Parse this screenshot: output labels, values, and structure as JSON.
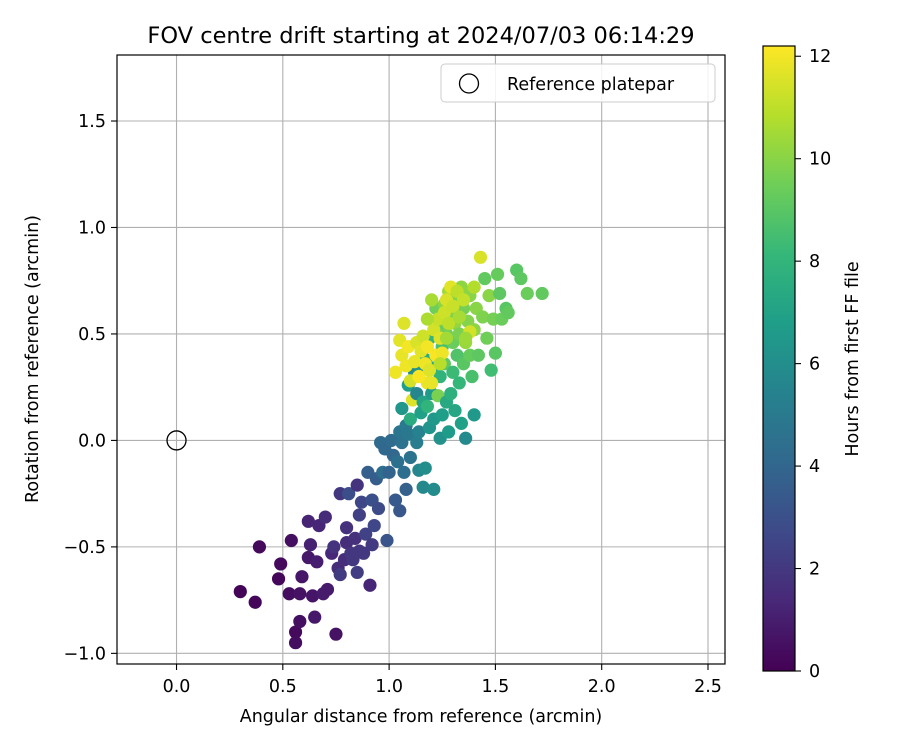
{
  "chart_data": {
    "type": "scatter",
    "title": "FOV centre drift starting at 2024/07/03 06:14:29",
    "xlabel": "Angular distance from reference (arcmin)",
    "ylabel": "Rotation from reference (arcmin)",
    "xlim": [
      -0.28,
      2.58
    ],
    "ylim": [
      -1.05,
      1.81
    ],
    "xticks": [
      0.0,
      0.5,
      1.0,
      1.5,
      2.0,
      2.5
    ],
    "xtick_labels": [
      "0.0",
      "0.5",
      "1.0",
      "1.5",
      "2.0",
      "2.5"
    ],
    "yticks": [
      -1.0,
      -0.5,
      0.0,
      0.5,
      1.0,
      1.5
    ],
    "ytick_labels": [
      "−1.0",
      "−0.5",
      "0.0",
      "0.5",
      "1.0",
      "1.5"
    ],
    "grid": true,
    "legend": {
      "placement": "top-right",
      "entries": [
        "Reference platepar"
      ]
    },
    "reference_point": {
      "x": 0.0,
      "y": 0.0
    },
    "colorbar": {
      "label": "Hours from first FF file",
      "colormap": "viridis",
      "range": [
        0,
        12.2
      ],
      "ticks": [
        0,
        2,
        4,
        6,
        8,
        10,
        12
      ],
      "tick_labels": [
        "0",
        "2",
        "4",
        "6",
        "8",
        "10",
        "12"
      ],
      "colors": [
        "#440154",
        "#482878",
        "#3e4a89",
        "#31688e",
        "#26828e",
        "#1f9e89",
        "#35b779",
        "#6ece58",
        "#b5de2b",
        "#fde725"
      ]
    },
    "points": [
      {
        "x": 0.3,
        "y": -0.71,
        "hours": 0.1
      },
      {
        "x": 0.37,
        "y": -0.76,
        "hours": 0.2
      },
      {
        "x": 0.39,
        "y": -0.5,
        "hours": 0.3
      },
      {
        "x": 0.48,
        "y": -0.65,
        "hours": 0.2
      },
      {
        "x": 0.49,
        "y": -0.58,
        "hours": 0.3
      },
      {
        "x": 0.53,
        "y": -0.72,
        "hours": 0.4
      },
      {
        "x": 0.54,
        "y": -0.47,
        "hours": 0.5
      },
      {
        "x": 0.56,
        "y": -0.9,
        "hours": 0.3
      },
      {
        "x": 0.56,
        "y": -0.95,
        "hours": 0.4
      },
      {
        "x": 0.58,
        "y": -0.85,
        "hours": 0.5
      },
      {
        "x": 0.58,
        "y": -0.72,
        "hours": 0.6
      },
      {
        "x": 0.59,
        "y": -0.64,
        "hours": 0.7
      },
      {
        "x": 0.62,
        "y": -0.55,
        "hours": 0.8
      },
      {
        "x": 0.62,
        "y": -0.38,
        "hours": 1.2
      },
      {
        "x": 0.63,
        "y": -0.49,
        "hours": 1.1
      },
      {
        "x": 0.64,
        "y": -0.73,
        "hours": 0.7
      },
      {
        "x": 0.65,
        "y": -0.83,
        "hours": 0.8
      },
      {
        "x": 0.66,
        "y": -0.57,
        "hours": 1.0
      },
      {
        "x": 0.67,
        "y": -0.4,
        "hours": 1.3
      },
      {
        "x": 0.69,
        "y": -0.72,
        "hours": 0.9
      },
      {
        "x": 0.7,
        "y": -0.36,
        "hours": 1.5
      },
      {
        "x": 0.71,
        "y": -0.7,
        "hours": 0.9
      },
      {
        "x": 0.73,
        "y": -0.53,
        "hours": 1.4
      },
      {
        "x": 0.74,
        "y": -0.5,
        "hours": 1.8
      },
      {
        "x": 0.75,
        "y": -0.91,
        "hours": 0.6
      },
      {
        "x": 0.76,
        "y": -0.6,
        "hours": 1.5
      },
      {
        "x": 0.77,
        "y": -0.25,
        "hours": 2.0
      },
      {
        "x": 0.77,
        "y": -0.63,
        "hours": 2.1
      },
      {
        "x": 0.79,
        "y": -0.56,
        "hours": 1.6
      },
      {
        "x": 0.8,
        "y": -0.48,
        "hours": 1.6
      },
      {
        "x": 0.8,
        "y": -0.41,
        "hours": 1.7
      },
      {
        "x": 0.81,
        "y": -0.25,
        "hours": 2.9
      },
      {
        "x": 0.82,
        "y": -0.53,
        "hours": 1.9
      },
      {
        "x": 0.83,
        "y": -0.56,
        "hours": 2.0
      },
      {
        "x": 0.84,
        "y": -0.46,
        "hours": 1.7
      },
      {
        "x": 0.85,
        "y": -0.21,
        "hours": 1.8
      },
      {
        "x": 0.85,
        "y": -0.62,
        "hours": 2.2
      },
      {
        "x": 0.86,
        "y": -0.52,
        "hours": 1.9
      },
      {
        "x": 0.86,
        "y": -0.35,
        "hours": 2.3
      },
      {
        "x": 0.87,
        "y": -0.29,
        "hours": 2.6
      },
      {
        "x": 0.88,
        "y": -0.53,
        "hours": 2.0
      },
      {
        "x": 0.89,
        "y": -0.44,
        "hours": 2.4
      },
      {
        "x": 0.9,
        "y": -0.15,
        "hours": 3.7
      },
      {
        "x": 0.91,
        "y": -0.68,
        "hours": 1.3
      },
      {
        "x": 0.92,
        "y": -0.49,
        "hours": 2.1
      },
      {
        "x": 0.92,
        "y": -0.28,
        "hours": 3.0
      },
      {
        "x": 0.93,
        "y": -0.4,
        "hours": 2.6
      },
      {
        "x": 0.94,
        "y": -0.18,
        "hours": 3.6
      },
      {
        "x": 0.95,
        "y": -0.32,
        "hours": 2.8
      },
      {
        "x": 0.96,
        "y": -0.01,
        "hours": 4.2
      },
      {
        "x": 0.97,
        "y": -0.15,
        "hours": 4.4
      },
      {
        "x": 0.98,
        "y": -0.04,
        "hours": 4.1
      },
      {
        "x": 0.99,
        "y": -0.47,
        "hours": 3.2
      },
      {
        "x": 1.0,
        "y": -0.15,
        "hours": 3.9
      },
      {
        "x": 1.01,
        "y": 0.0,
        "hours": 4.3
      },
      {
        "x": 1.02,
        "y": -0.07,
        "hours": 4.0
      },
      {
        "x": 1.03,
        "y": -0.28,
        "hours": 3.4
      },
      {
        "x": 1.04,
        "y": -0.1,
        "hours": 4.5
      },
      {
        "x": 1.05,
        "y": -0.33,
        "hours": 3.3
      },
      {
        "x": 1.05,
        "y": 0.04,
        "hours": 4.8
      },
      {
        "x": 1.06,
        "y": -0.01,
        "hours": 4.6
      },
      {
        "x": 1.06,
        "y": 0.15,
        "hours": 6.4
      },
      {
        "x": 1.07,
        "y": -0.15,
        "hours": 4.4
      },
      {
        "x": 1.08,
        "y": -0.23,
        "hours": 3.8
      },
      {
        "x": 1.08,
        "y": 0.07,
        "hours": 5.0
      },
      {
        "x": 1.09,
        "y": 0.03,
        "hours": 4.9
      },
      {
        "x": 1.09,
        "y": 0.26,
        "hours": 6.8
      },
      {
        "x": 1.1,
        "y": -0.08,
        "hours": 4.7
      },
      {
        "x": 1.1,
        "y": 0.1,
        "hours": 7.5
      },
      {
        "x": 1.11,
        "y": 0.19,
        "hours": 11.6
      },
      {
        "x": 1.12,
        "y": 0.32,
        "hours": 6.0
      },
      {
        "x": 1.13,
        "y": -0.01,
        "hours": 5.2
      },
      {
        "x": 1.13,
        "y": 0.22,
        "hours": 5.6
      },
      {
        "x": 1.14,
        "y": -0.14,
        "hours": 5.6
      },
      {
        "x": 1.14,
        "y": 0.04,
        "hours": 5.4
      },
      {
        "x": 1.15,
        "y": 0.13,
        "hours": 6.9
      },
      {
        "x": 1.15,
        "y": 0.33,
        "hours": 6.3
      },
      {
        "x": 1.16,
        "y": -0.22,
        "hours": 5.7
      },
      {
        "x": 1.16,
        "y": 0.18,
        "hours": 7.1
      },
      {
        "x": 1.17,
        "y": -0.13,
        "hours": 6.0
      },
      {
        "x": 1.17,
        "y": 0.38,
        "hours": 7.5
      },
      {
        "x": 1.18,
        "y": 0.16,
        "hours": 7.9
      },
      {
        "x": 1.18,
        "y": 0.27,
        "hours": 11.8
      },
      {
        "x": 1.19,
        "y": 0.06,
        "hours": 6.3
      },
      {
        "x": 1.19,
        "y": 0.48,
        "hours": 8.0
      },
      {
        "x": 1.2,
        "y": 0.22,
        "hours": 6.6
      },
      {
        "x": 1.2,
        "y": 0.34,
        "hours": 7.3
      },
      {
        "x": 1.21,
        "y": -0.23,
        "hours": 5.9
      },
      {
        "x": 1.21,
        "y": 0.1,
        "hours": 6.5
      },
      {
        "x": 1.22,
        "y": 0.4,
        "hours": 9.0
      },
      {
        "x": 1.22,
        "y": 0.62,
        "hours": 9.5
      },
      {
        "x": 1.23,
        "y": 0.21,
        "hours": 9.7
      },
      {
        "x": 1.23,
        "y": 0.53,
        "hours": 9.3
      },
      {
        "x": 1.24,
        "y": 0.01,
        "hours": 6.2
      },
      {
        "x": 1.24,
        "y": 0.3,
        "hours": 7.9
      },
      {
        "x": 1.25,
        "y": 0.44,
        "hours": 8.6
      },
      {
        "x": 1.25,
        "y": 0.12,
        "hours": 6.8
      },
      {
        "x": 1.26,
        "y": 0.64,
        "hours": 10.0
      },
      {
        "x": 1.26,
        "y": 0.36,
        "hours": 9.1
      },
      {
        "x": 1.27,
        "y": 0.18,
        "hours": 7.4
      },
      {
        "x": 1.27,
        "y": 0.5,
        "hours": 9.6
      },
      {
        "x": 1.28,
        "y": 0.04,
        "hours": 6.7
      },
      {
        "x": 1.28,
        "y": 0.7,
        "hours": 10.4
      },
      {
        "x": 1.29,
        "y": 0.22,
        "hours": 7.7
      },
      {
        "x": 1.29,
        "y": 0.6,
        "hours": 9.8
      },
      {
        "x": 1.3,
        "y": 0.32,
        "hours": 8.3
      },
      {
        "x": 1.3,
        "y": 0.46,
        "hours": 9.4
      },
      {
        "x": 1.31,
        "y": 0.14,
        "hours": 7.2
      },
      {
        "x": 1.31,
        "y": 0.55,
        "hours": 10.2
      },
      {
        "x": 1.32,
        "y": 0.4,
        "hours": 8.8
      },
      {
        "x": 1.32,
        "y": 0.66,
        "hours": 9.9
      },
      {
        "x": 1.33,
        "y": 0.27,
        "hours": 8.1
      },
      {
        "x": 1.33,
        "y": 0.5,
        "hours": 9.7
      },
      {
        "x": 1.34,
        "y": 0.08,
        "hours": 6.9
      },
      {
        "x": 1.34,
        "y": 0.72,
        "hours": 10.1
      },
      {
        "x": 1.35,
        "y": 0.36,
        "hours": 9.0
      },
      {
        "x": 1.35,
        "y": 0.62,
        "hours": 9.6
      },
      {
        "x": 1.36,
        "y": 0.01,
        "hours": 5.8
      },
      {
        "x": 1.36,
        "y": 0.46,
        "hours": 10.3
      },
      {
        "x": 1.37,
        "y": 0.56,
        "hours": 9.9
      },
      {
        "x": 1.38,
        "y": 0.4,
        "hours": 9.3
      },
      {
        "x": 1.38,
        "y": 0.68,
        "hours": 10.0
      },
      {
        "x": 1.39,
        "y": 0.3,
        "hours": 8.6
      },
      {
        "x": 1.4,
        "y": 0.52,
        "hours": 10.1
      },
      {
        "x": 1.4,
        "y": 0.12,
        "hours": 6.5
      },
      {
        "x": 1.41,
        "y": 0.62,
        "hours": 10.0
      },
      {
        "x": 1.42,
        "y": 0.4,
        "hours": 9.1
      },
      {
        "x": 1.43,
        "y": 0.86,
        "hours": 11.5
      },
      {
        "x": 1.44,
        "y": 0.58,
        "hours": 9.8
      },
      {
        "x": 1.45,
        "y": 0.76,
        "hours": 9.2
      },
      {
        "x": 1.46,
        "y": 0.48,
        "hours": 9.5
      },
      {
        "x": 1.47,
        "y": 0.68,
        "hours": 10.0
      },
      {
        "x": 1.48,
        "y": 0.33,
        "hours": 8.4
      },
      {
        "x": 1.49,
        "y": 0.57,
        "hours": 9.6
      },
      {
        "x": 1.5,
        "y": 0.41,
        "hours": 9.0
      },
      {
        "x": 1.51,
        "y": 0.78,
        "hours": 9.3
      },
      {
        "x": 1.52,
        "y": 0.69,
        "hours": 9.1
      },
      {
        "x": 1.53,
        "y": 0.57,
        "hours": 9.4
      },
      {
        "x": 1.55,
        "y": 0.62,
        "hours": 9.0
      },
      {
        "x": 1.56,
        "y": 0.6,
        "hours": 9.2
      },
      {
        "x": 1.6,
        "y": 0.8,
        "hours": 9.0
      },
      {
        "x": 1.62,
        "y": 0.76,
        "hours": 9.1
      },
      {
        "x": 1.65,
        "y": 0.69,
        "hours": 9.4
      },
      {
        "x": 1.72,
        "y": 0.69,
        "hours": 9.2
      },
      {
        "x": 1.03,
        "y": 0.32,
        "hours": 11.9
      },
      {
        "x": 1.05,
        "y": 0.47,
        "hours": 11.7
      },
      {
        "x": 1.06,
        "y": 0.4,
        "hours": 11.8
      },
      {
        "x": 1.07,
        "y": 0.55,
        "hours": 11.6
      },
      {
        "x": 1.08,
        "y": 0.35,
        "hours": 11.9
      },
      {
        "x": 1.09,
        "y": 0.44,
        "hours": 12.0
      },
      {
        "x": 1.1,
        "y": 0.28,
        "hours": 11.4
      },
      {
        "x": 1.12,
        "y": 0.37,
        "hours": 11.8
      },
      {
        "x": 1.13,
        "y": 0.46,
        "hours": 11.5
      },
      {
        "x": 1.14,
        "y": 0.3,
        "hours": 12.1
      },
      {
        "x": 1.15,
        "y": 0.42,
        "hours": 11.7
      },
      {
        "x": 1.16,
        "y": 0.49,
        "hours": 11.3
      },
      {
        "x": 1.17,
        "y": 0.36,
        "hours": 11.9
      },
      {
        "x": 1.18,
        "y": 0.44,
        "hours": 12.0
      },
      {
        "x": 1.19,
        "y": 0.33,
        "hours": 11.6
      },
      {
        "x": 1.2,
        "y": 0.27,
        "hours": 11.8
      },
      {
        "x": 1.21,
        "y": 0.52,
        "hours": 11.4
      },
      {
        "x": 1.22,
        "y": 0.4,
        "hours": 12.1
      },
      {
        "x": 1.23,
        "y": 0.57,
        "hours": 11.2
      },
      {
        "x": 1.24,
        "y": 0.48,
        "hours": 11.6
      },
      {
        "x": 1.25,
        "y": 0.41,
        "hours": 11.9
      },
      {
        "x": 1.26,
        "y": 0.6,
        "hours": 11.3
      },
      {
        "x": 1.27,
        "y": 0.66,
        "hours": 11.5
      },
      {
        "x": 1.28,
        "y": 0.55,
        "hours": 11.0
      },
      {
        "x": 1.29,
        "y": 0.72,
        "hours": 11.7
      },
      {
        "x": 1.3,
        "y": 0.63,
        "hours": 11.2
      },
      {
        "x": 1.32,
        "y": 0.7,
        "hours": 11.0
      },
      {
        "x": 1.35,
        "y": 0.66,
        "hours": 11.1
      },
      {
        "x": 1.38,
        "y": 0.51,
        "hours": 11.4
      },
      {
        "x": 1.4,
        "y": 0.72,
        "hours": 10.8
      },
      {
        "x": 1.2,
        "y": 0.66,
        "hours": 10.6
      },
      {
        "x": 1.18,
        "y": 0.57,
        "hours": 10.7
      },
      {
        "x": 1.24,
        "y": 0.36,
        "hours": 10.9
      },
      {
        "x": 1.27,
        "y": 0.48,
        "hours": 10.5
      },
      {
        "x": 1.33,
        "y": 0.58,
        "hours": 10.6
      },
      {
        "x": 1.36,
        "y": 0.48,
        "hours": 10.4
      }
    ]
  }
}
